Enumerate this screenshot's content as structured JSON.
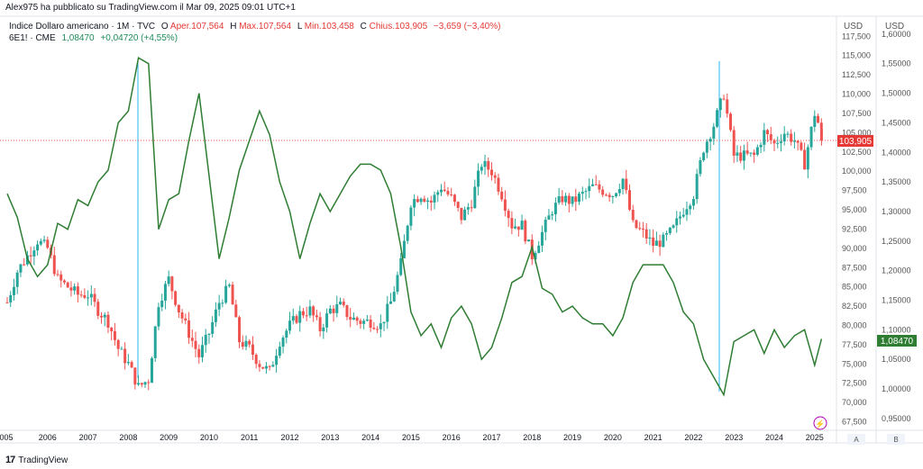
{
  "publisher": "Alex975 ha pubblicato su TradingView.com il Mar 09, 2025 09:01 UTC+1",
  "footer_brand": "TradingView",
  "legend_dxy": {
    "symbol": "Indice Dollaro americano · 1M · TVC",
    "open_label": "O",
    "open": "Aper.107,564",
    "high_label": "H",
    "high": "Max.107,564",
    "low_label": "L",
    "low": "Min.103,458",
    "close_label": "C",
    "close": "Chius.103,905",
    "change": "−3,659 (−3,40%)"
  },
  "legend_eur": {
    "symbol": "6E1! · CME",
    "price": "1,08470",
    "change": "+0,04720 (+4,55%)"
  },
  "axis_left_currency": "USD",
  "axis_right_currency": "USD",
  "scale_buttons": {
    "left": "A",
    "right": "B"
  },
  "last_price_dxy": "103,905",
  "last_price_eur": "1,08470",
  "colors": {
    "up": "#26a69a",
    "down": "#ef5350",
    "eur_line": "#2e7d32",
    "vline": "#29b6f6",
    "last_dxy": "#e53935",
    "last_eur": "#2e7d32"
  },
  "chart_data": {
    "type": "candlestick+line",
    "x_labels": [
      "005",
      "2006",
      "2007",
      "2008",
      "2009",
      "2010",
      "2011",
      "2012",
      "2013",
      "2014",
      "2015",
      "2016",
      "2017",
      "2018",
      "2019",
      "2020",
      "2021",
      "2022",
      "2023",
      "2024",
      "2025"
    ],
    "dxy_ticks": [
      "117,500",
      "115,000",
      "112,500",
      "110,000",
      "107,500",
      "105,000",
      "102,500",
      "100,000",
      "97,500",
      "95,000",
      "92,500",
      "90,000",
      "87,500",
      "85,000",
      "82,500",
      "80,000",
      "77,500",
      "75,000",
      "72,500",
      "70,000",
      "67,500"
    ],
    "eur_ticks": [
      "1,60000",
      "1,55000",
      "1,50000",
      "1,45000",
      "1,40000",
      "1,35000",
      "1,30000",
      "1,25000",
      "1,20000",
      "1,15000",
      "1,10000",
      "1,05000",
      "1,00000",
      "0,95000"
    ],
    "dxy_range": [
      66.4,
      118.7
    ],
    "eur_range": [
      0.93,
      1.612
    ],
    "dxy_series": {
      "name": "Indice Dollaro americano",
      "points": [
        [
          2005.0,
          83
        ],
        [
          2005.25,
          87
        ],
        [
          2005.5,
          89
        ],
        [
          2005.75,
          91
        ],
        [
          2006.0,
          90
        ],
        [
          2006.25,
          86
        ],
        [
          2006.5,
          85
        ],
        [
          2006.75,
          84
        ],
        [
          2007.0,
          84
        ],
        [
          2007.25,
          82
        ],
        [
          2007.5,
          80.5
        ],
        [
          2007.75,
          77
        ],
        [
          2008.0,
          75
        ],
        [
          2008.25,
          72
        ],
        [
          2008.5,
          73
        ],
        [
          2008.75,
          83
        ],
        [
          2009.0,
          86
        ],
        [
          2009.25,
          82
        ],
        [
          2009.5,
          79
        ],
        [
          2009.75,
          76
        ],
        [
          2010.0,
          79
        ],
        [
          2010.25,
          83
        ],
        [
          2010.5,
          85
        ],
        [
          2010.75,
          78
        ],
        [
          2011.0,
          77
        ],
        [
          2011.25,
          75
        ],
        [
          2011.5,
          74
        ],
        [
          2011.75,
          78
        ],
        [
          2012.0,
          80
        ],
        [
          2012.25,
          81.5
        ],
        [
          2012.5,
          82
        ],
        [
          2012.75,
          79.5
        ],
        [
          2013.0,
          82
        ],
        [
          2013.25,
          82.5
        ],
        [
          2013.5,
          81
        ],
        [
          2013.75,
          80.5
        ],
        [
          2014.0,
          80.5
        ],
        [
          2014.25,
          80
        ],
        [
          2014.5,
          83
        ],
        [
          2014.75,
          88
        ],
        [
          2015.0,
          96
        ],
        [
          2015.25,
          97
        ],
        [
          2015.5,
          96
        ],
        [
          2015.75,
          98
        ],
        [
          2016.0,
          96.5
        ],
        [
          2016.25,
          94
        ],
        [
          2016.5,
          96
        ],
        [
          2016.75,
          101
        ],
        [
          2017.0,
          100
        ],
        [
          2017.25,
          97
        ],
        [
          2017.5,
          93
        ],
        [
          2017.75,
          93
        ],
        [
          2018.0,
          89
        ],
        [
          2018.25,
          92
        ],
        [
          2018.5,
          95
        ],
        [
          2018.75,
          96.5
        ],
        [
          2019.0,
          96
        ],
        [
          2019.25,
          97
        ],
        [
          2019.5,
          98
        ],
        [
          2019.75,
          97.5
        ],
        [
          2020.0,
          97
        ],
        [
          2020.25,
          99
        ],
        [
          2020.5,
          93
        ],
        [
          2020.75,
          92
        ],
        [
          2021.0,
          90.5
        ],
        [
          2021.25,
          91
        ],
        [
          2021.5,
          92.5
        ],
        [
          2021.75,
          95
        ],
        [
          2022.0,
          97
        ],
        [
          2022.25,
          103
        ],
        [
          2022.5,
          106
        ],
        [
          2022.75,
          110
        ],
        [
          2023.0,
          102
        ],
        [
          2023.25,
          102
        ],
        [
          2023.5,
          102
        ],
        [
          2023.75,
          105
        ],
        [
          2024.0,
          103.5
        ],
        [
          2024.25,
          105
        ],
        [
          2024.5,
          104
        ],
        [
          2024.75,
          101
        ],
        [
          2025.0,
          107.5
        ],
        [
          2025.17,
          103.9
        ]
      ]
    },
    "eur_series": {
      "name": "6E1! · CME",
      "points": [
        [
          2005.0,
          1.33
        ],
        [
          2005.25,
          1.29
        ],
        [
          2005.5,
          1.22
        ],
        [
          2005.75,
          1.19
        ],
        [
          2006.0,
          1.21
        ],
        [
          2006.25,
          1.28
        ],
        [
          2006.5,
          1.27
        ],
        [
          2006.75,
          1.32
        ],
        [
          2007.0,
          1.31
        ],
        [
          2007.25,
          1.35
        ],
        [
          2007.5,
          1.37
        ],
        [
          2007.75,
          1.45
        ],
        [
          2008.0,
          1.47
        ],
        [
          2008.25,
          1.56
        ],
        [
          2008.5,
          1.55
        ],
        [
          2008.75,
          1.27
        ],
        [
          2009.0,
          1.32
        ],
        [
          2009.25,
          1.33
        ],
        [
          2009.5,
          1.42
        ],
        [
          2009.75,
          1.5
        ],
        [
          2010.0,
          1.36
        ],
        [
          2010.25,
          1.22
        ],
        [
          2010.5,
          1.29
        ],
        [
          2010.75,
          1.37
        ],
        [
          2011.0,
          1.42
        ],
        [
          2011.25,
          1.47
        ],
        [
          2011.5,
          1.43
        ],
        [
          2011.75,
          1.35
        ],
        [
          2012.0,
          1.3
        ],
        [
          2012.25,
          1.22
        ],
        [
          2012.5,
          1.28
        ],
        [
          2012.75,
          1.33
        ],
        [
          2013.0,
          1.3
        ],
        [
          2013.25,
          1.33
        ],
        [
          2013.5,
          1.36
        ],
        [
          2013.75,
          1.38
        ],
        [
          2014.0,
          1.38
        ],
        [
          2014.25,
          1.37
        ],
        [
          2014.5,
          1.33
        ],
        [
          2014.75,
          1.24
        ],
        [
          2015.0,
          1.13
        ],
        [
          2015.25,
          1.09
        ],
        [
          2015.5,
          1.11
        ],
        [
          2015.75,
          1.07
        ],
        [
          2016.0,
          1.12
        ],
        [
          2016.25,
          1.14
        ],
        [
          2016.5,
          1.11
        ],
        [
          2016.75,
          1.05
        ],
        [
          2017.0,
          1.07
        ],
        [
          2017.25,
          1.12
        ],
        [
          2017.5,
          1.18
        ],
        [
          2017.75,
          1.19
        ],
        [
          2018.0,
          1.24
        ],
        [
          2018.25,
          1.17
        ],
        [
          2018.5,
          1.16
        ],
        [
          2018.75,
          1.13
        ],
        [
          2019.0,
          1.14
        ],
        [
          2019.25,
          1.12
        ],
        [
          2019.5,
          1.11
        ],
        [
          2019.75,
          1.11
        ],
        [
          2020.0,
          1.09
        ],
        [
          2020.25,
          1.12
        ],
        [
          2020.5,
          1.18
        ],
        [
          2020.75,
          1.21
        ],
        [
          2021.0,
          1.21
        ],
        [
          2021.25,
          1.21
        ],
        [
          2021.5,
          1.18
        ],
        [
          2021.75,
          1.13
        ],
        [
          2022.0,
          1.11
        ],
        [
          2022.25,
          1.05
        ],
        [
          2022.5,
          1.02
        ],
        [
          2022.75,
          0.99
        ],
        [
          2023.0,
          1.08
        ],
        [
          2023.25,
          1.09
        ],
        [
          2023.5,
          1.1
        ],
        [
          2023.75,
          1.06
        ],
        [
          2024.0,
          1.1
        ],
        [
          2024.25,
          1.07
        ],
        [
          2024.5,
          1.09
        ],
        [
          2024.75,
          1.1
        ],
        [
          2025.0,
          1.04
        ],
        [
          2025.17,
          1.0847
        ]
      ]
    }
  }
}
